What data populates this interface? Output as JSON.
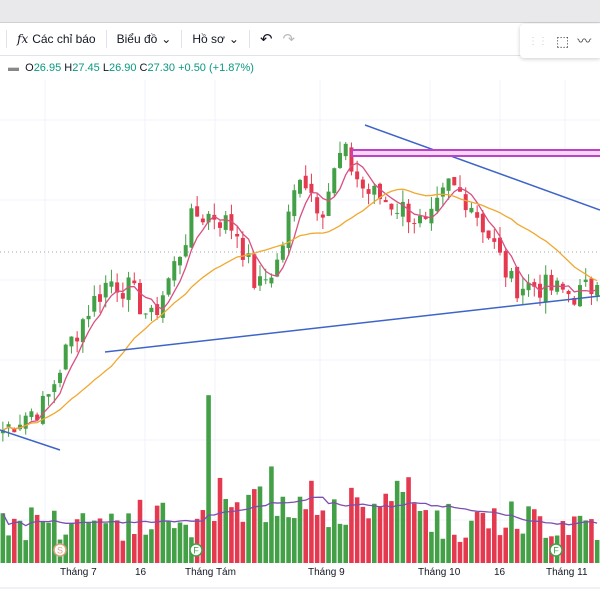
{
  "toolbar": {
    "indicators_label": "Các chỉ báo",
    "chart_label": "Biểu đồ",
    "profile_label": "Hồ sơ",
    "undo": "↶",
    "redo": "↷",
    "fx": "fx"
  },
  "legend": {
    "o_label": "O",
    "o": "26.95",
    "h_label": "H",
    "h": "27.45",
    "l_label": "L",
    "l": "26.90",
    "c_label": "C",
    "c": "27.30",
    "change": "+0.50 (+1.87%)"
  },
  "xaxis": [
    "Tháng 7",
    "16",
    "Tháng Tám",
    "Tháng 9",
    "Tháng 10",
    "16",
    "Tháng 11"
  ],
  "events": [
    {
      "label": "S"
    },
    {
      "label": "F"
    },
    {
      "label": "F"
    }
  ],
  "colors": {
    "up": "#43a047",
    "down": "#e53950",
    "ma_fast": "#d94f80",
    "ma_slow": "#f0a830",
    "trend": "#3d64c8",
    "zone": "#c040c8",
    "vol_ma": "#7a4fb0"
  },
  "chart_data": {
    "type": "candlestick",
    "close_keyframes": [
      22.47,
      22.97,
      23.3,
      25.13,
      26.47,
      27.47,
      27.13,
      26.13,
      27.8,
      29.63,
      29.63,
      29.13,
      27.13,
      28.13,
      31.13,
      29.8,
      31.8,
      30.47,
      30.13,
      29.8,
      29.13,
      30.63,
      30.13,
      28.8,
      27.3,
      27.3,
      27.13,
      26.97,
      27.3
    ],
    "last": {
      "open": 26.95,
      "high": 27.45,
      "low": 26.9,
      "close": 27.3
    },
    "resistance_zone": [
      31.6,
      31.8
    ]
  }
}
